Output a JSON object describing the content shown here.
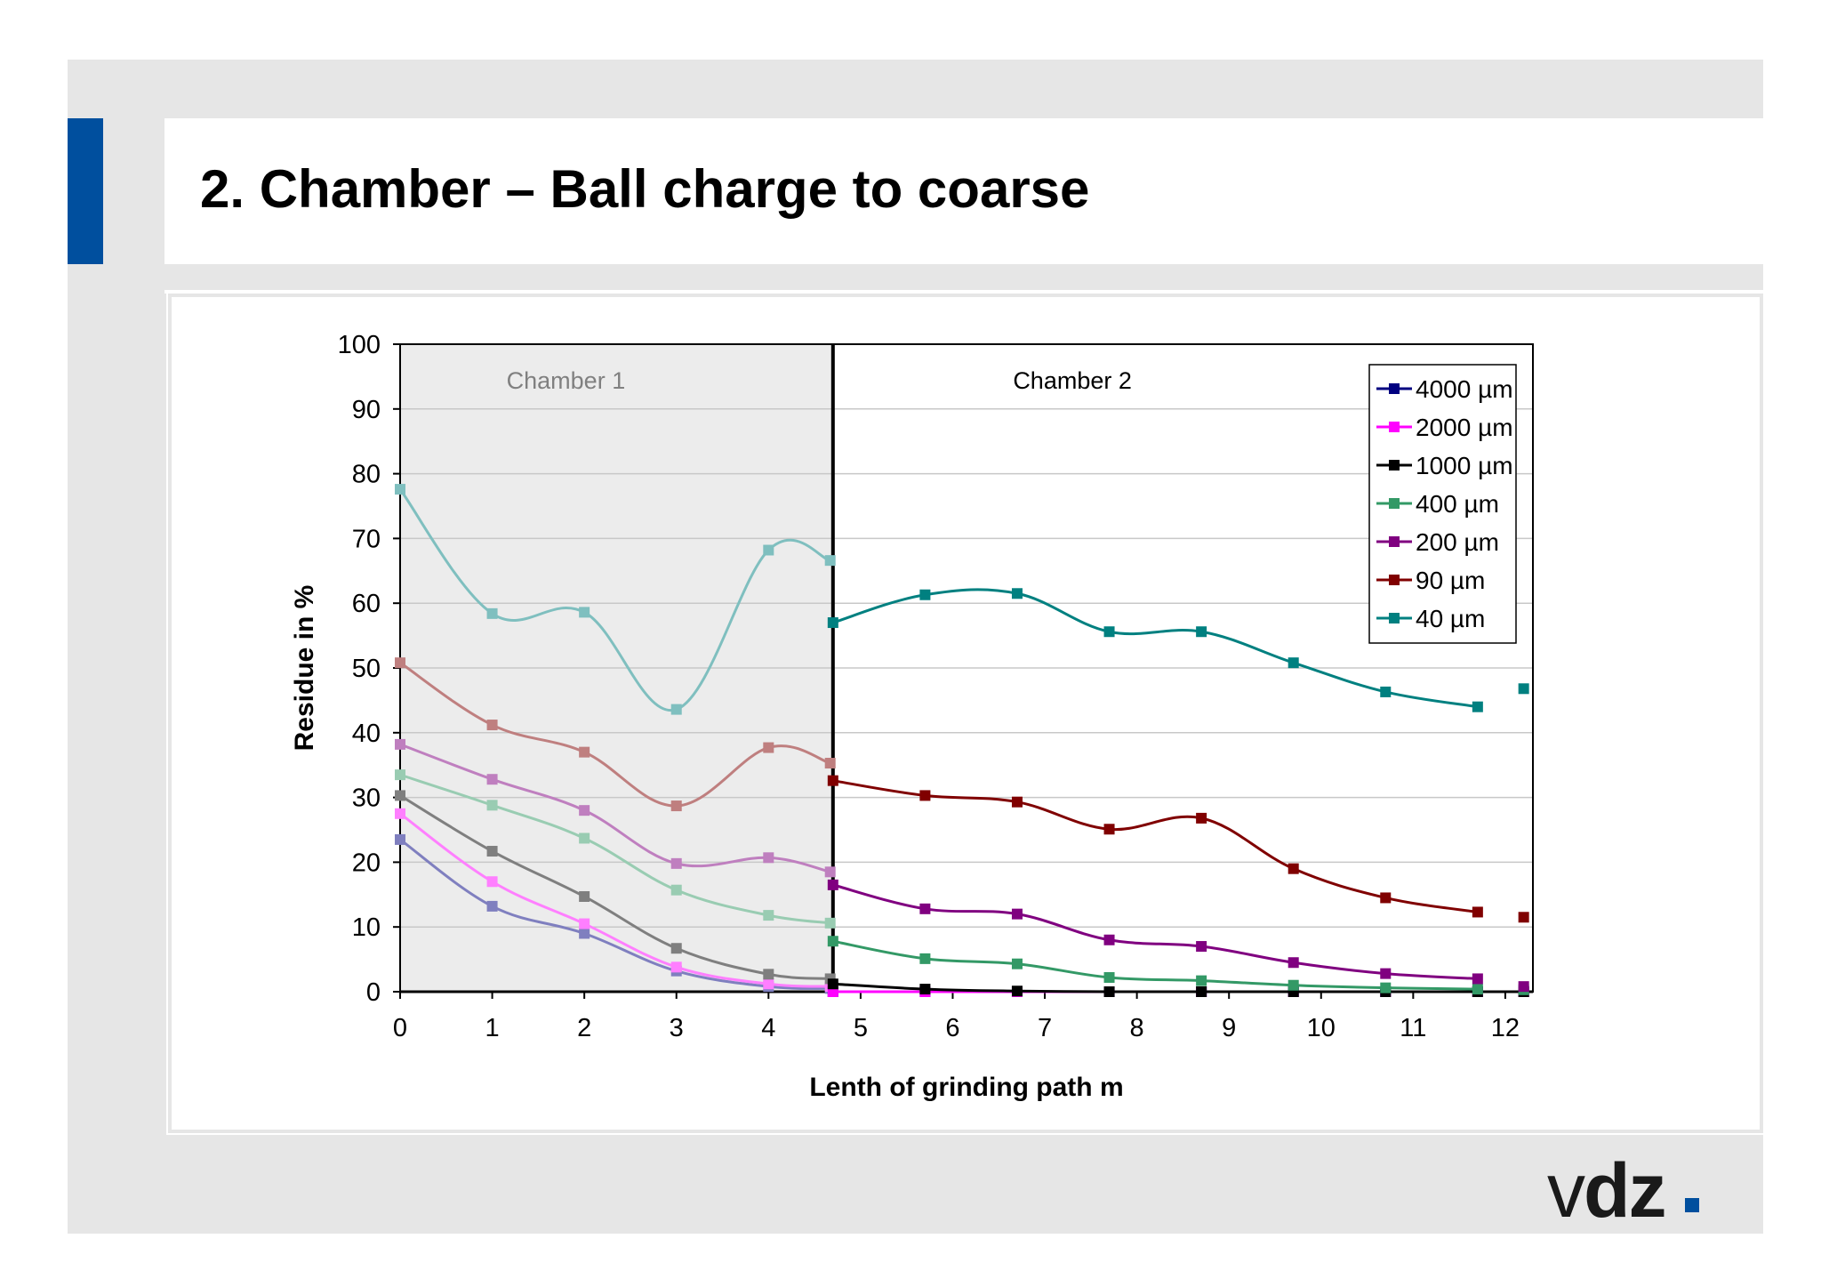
{
  "slide": {
    "title": "2. Chamber – Ball charge to coarse",
    "logo_text_v": "v",
    "logo_text_dz": "dz",
    "colors": {
      "accent": "#004f9e",
      "background": "#e6e6e6"
    }
  },
  "chart_data": {
    "type": "line",
    "title": "",
    "xlabel": "Lenth of grinding path m",
    "ylabel": "Residue in %",
    "xlim": [
      0,
      12.3
    ],
    "ylim": [
      0,
      100
    ],
    "x_ticks": [
      0,
      1,
      2,
      3,
      4,
      5,
      6,
      7,
      8,
      9,
      10,
      11,
      12
    ],
    "y_ticks": [
      0,
      10,
      20,
      30,
      40,
      50,
      60,
      70,
      80,
      90,
      100
    ],
    "grid": true,
    "legend_position": "top-right",
    "regions": [
      {
        "label": "Chamber 1",
        "x_range": [
          0,
          4.7
        ],
        "shaded": true
      },
      {
        "label": "Chamber 2",
        "x_range": [
          4.7,
          12.3
        ],
        "shaded": false
      }
    ],
    "series": [
      {
        "name": "4000 µm",
        "color": "#000080",
        "chamber1_color": "#7f7fbf",
        "chamber1": {
          "x": [
            0,
            1,
            2,
            3,
            4,
            4.67
          ],
          "y": [
            23.5,
            13.2,
            9.0,
            3.2,
            0.8,
            0.5
          ]
        },
        "chamber2": {
          "x": [
            4.7,
            5.7,
            6.7,
            7.7,
            8.7,
            9.7,
            10.7,
            11.7,
            12.2
          ],
          "y": [
            0,
            0,
            0,
            0,
            0,
            0,
            0,
            0,
            0
          ]
        }
      },
      {
        "name": "2000 µm",
        "color": "#ff00ff",
        "chamber1_color": "#ff7fff",
        "chamber1": {
          "x": [
            0,
            1,
            2,
            3,
            4,
            4.67
          ],
          "y": [
            27.5,
            17.0,
            10.5,
            3.8,
            1.2,
            0.8
          ]
        },
        "chamber2": {
          "x": [
            4.7,
            5.7,
            6.7,
            7.7,
            8.7,
            9.7,
            10.7,
            11.7,
            12.2
          ],
          "y": [
            0,
            0,
            0,
            0,
            0,
            0,
            0,
            0,
            0
          ]
        }
      },
      {
        "name": "1000 µm",
        "color": "#000000",
        "chamber1_color": "#7f7f7f",
        "chamber1": {
          "x": [
            0,
            1,
            2,
            3,
            4,
            4.67
          ],
          "y": [
            30.3,
            21.7,
            14.7,
            6.7,
            2.7,
            2.0
          ]
        },
        "chamber2": {
          "x": [
            4.7,
            5.7,
            6.7,
            7.7,
            8.7,
            9.7,
            10.7,
            11.7,
            12.2
          ],
          "y": [
            1.2,
            0.4,
            0.1,
            0,
            0,
            0,
            0,
            0,
            0
          ]
        }
      },
      {
        "name": "400 µm",
        "color": "#339966",
        "chamber1_color": "#99ccb2",
        "chamber1": {
          "x": [
            0,
            1,
            2,
            3,
            4,
            4.67
          ],
          "y": [
            33.5,
            28.8,
            23.7,
            15.7,
            11.8,
            10.6
          ]
        },
        "chamber2": {
          "x": [
            4.7,
            5.7,
            6.7,
            7.7,
            8.7,
            9.7,
            10.7,
            11.7,
            12.2
          ],
          "y": [
            7.8,
            5.1,
            4.3,
            2.2,
            1.7,
            1.0,
            0.6,
            0.4,
            0.3
          ]
        }
      },
      {
        "name": "200 µm",
        "color": "#800080",
        "chamber1_color": "#bf7fbf",
        "chamber1": {
          "x": [
            0,
            1,
            2,
            3,
            4,
            4.67
          ],
          "y": [
            38.2,
            32.8,
            28.0,
            19.8,
            20.7,
            18.5
          ]
        },
        "chamber2": {
          "x": [
            4.7,
            5.7,
            6.7,
            7.7,
            8.7,
            9.7,
            10.7,
            11.7,
            12.2
          ],
          "y": [
            16.5,
            12.8,
            12.0,
            8.0,
            7.0,
            4.5,
            2.8,
            2.0,
            0.8
          ]
        }
      },
      {
        "name": "90 µm",
        "color": "#800000",
        "chamber1_color": "#bf7f7f",
        "chamber1": {
          "x": [
            0,
            1,
            2,
            3,
            4,
            4.67
          ],
          "y": [
            50.8,
            41.2,
            37.0,
            28.7,
            37.7,
            35.3
          ]
        },
        "chamber2": {
          "x": [
            4.7,
            5.7,
            6.7,
            7.7,
            8.7,
            9.7,
            10.7,
            11.7,
            12.2
          ],
          "y": [
            32.6,
            30.3,
            29.3,
            25.1,
            26.8,
            19.0,
            14.5,
            12.3,
            11.5
          ]
        }
      },
      {
        "name": "40 µm",
        "color": "#008080",
        "chamber1_color": "#7fbfbf",
        "chamber1": {
          "x": [
            0,
            1,
            2,
            3,
            4,
            4.67
          ],
          "y": [
            77.6,
            58.4,
            58.6,
            43.6,
            68.2,
            66.6
          ]
        },
        "chamber2": {
          "x": [
            4.7,
            5.7,
            6.7,
            7.7,
            8.7,
            9.7,
            10.7,
            11.7,
            12.2
          ],
          "y": [
            57.0,
            61.3,
            61.5,
            55.6,
            55.6,
            50.8,
            46.3,
            44.0,
            46.8
          ]
        }
      }
    ]
  }
}
